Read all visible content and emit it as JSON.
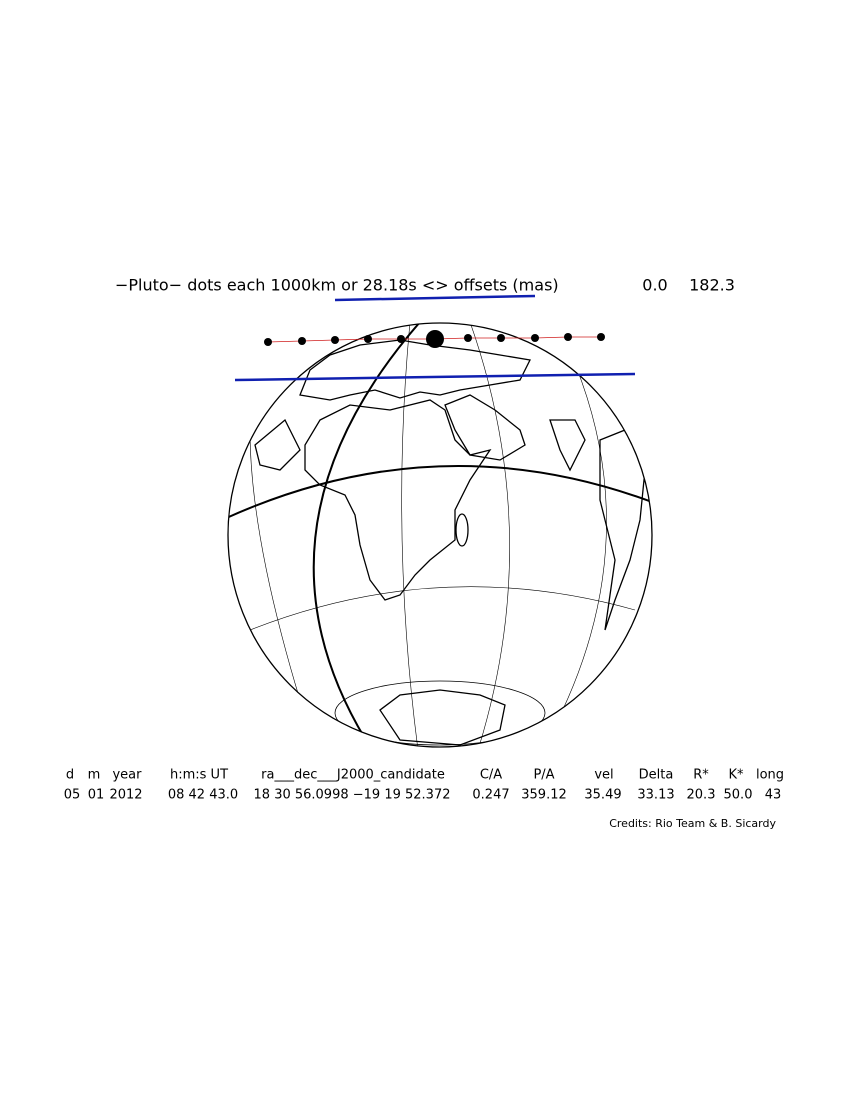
{
  "header": {
    "title": "−Pluto− dots each 1000km or 28.18s <> offsets (mas)",
    "offset_ra": "0.0",
    "offset_dec": "182.3"
  },
  "table": {
    "headers": [
      "d",
      "m",
      "year",
      "h:m:s UT",
      "ra___dec___J2000_candidate",
      "C/A",
      "P/A",
      "vel",
      "Delta",
      "R*",
      "K*",
      "long"
    ],
    "rows": [
      [
        "05",
        "01",
        "2012",
        "08 42 43.0",
        "18 30 56.0998 −19 19 52.372",
        "0.247",
        "359.12",
        "35.49",
        "33.13",
        "20.3",
        "50.0",
        "43"
      ]
    ]
  },
  "credits": "Credits: Rio Team & B. Sicardy"
}
